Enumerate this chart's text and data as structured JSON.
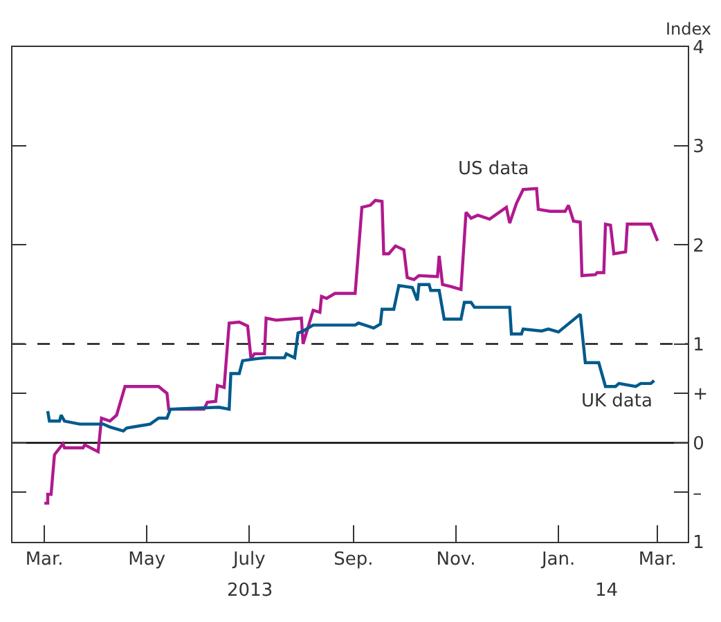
{
  "chart_data": {
    "type": "line",
    "ylabel": "Index",
    "xlim": [
      "2013-02-10",
      "2014-03-19"
    ],
    "xticks": [
      {
        "value": "2013-03-01",
        "label": "Mar."
      },
      {
        "value": "2013-05-01",
        "label": "May"
      },
      {
        "value": "2013-07-01",
        "label": "July"
      },
      {
        "value": "2013-09-01",
        "label": "Sep."
      },
      {
        "value": "2013-11-01",
        "label": "Nov."
      },
      {
        "value": "2014-01-01",
        "label": "Jan."
      },
      {
        "value": "2014-03-01",
        "label": "Mar."
      }
    ],
    "ylim": [
      -1,
      4
    ],
    "yticks": [
      4,
      3,
      2,
      1,
      {
        "value": 0.5,
        "label": "+"
      },
      0,
      {
        "value": -0.5,
        "label": "–"
      },
      {
        "value": -1,
        "label": "1"
      }
    ],
    "grid": false,
    "legend": false,
    "line_style": "solid",
    "marker": "none",
    "ref_lines": [
      {
        "axis": "y",
        "value": 1,
        "color": "#000000",
        "line_style": "dashed"
      },
      {
        "axis": "y",
        "value": 0,
        "color": "#000000",
        "line_style": "solid"
      }
    ],
    "annotations": [
      "2013",
      "14"
    ],
    "series": [
      {
        "name": "US data",
        "color": "#b0198e",
        "x": [
          "2013-03-01",
          "2013-03-03",
          "2013-03-03",
          "2013-03-05",
          "2013-03-07",
          "2013-03-12",
          "2013-03-13",
          "2013-03-24",
          "2013-03-25",
          "2013-04-02",
          "2013-04-04",
          "2013-04-09",
          "2013-04-13",
          "2013-04-18",
          "2013-05-08",
          "2013-05-13",
          "2013-05-14",
          "2013-06-04",
          "2013-06-06",
          "2013-06-11",
          "2013-06-12",
          "2013-06-16",
          "2013-06-19",
          "2013-06-25",
          "2013-06-30",
          "2013-07-02",
          "2013-07-04",
          "2013-07-10",
          "2013-07-11",
          "2013-07-17",
          "2013-08-01",
          "2013-08-02",
          "2013-08-08",
          "2013-08-12",
          "2013-08-13",
          "2013-08-16",
          "2013-08-21",
          "2013-09-02",
          "2013-09-06",
          "2013-09-11",
          "2013-09-14",
          "2013-09-18",
          "2013-09-19",
          "2013-09-22",
          "2013-09-26",
          "2013-10-01",
          "2013-10-03",
          "2013-10-07",
          "2013-10-10",
          "2013-10-21",
          "2013-10-22",
          "2013-10-24",
          "2013-10-29",
          "2013-11-04",
          "2013-11-07",
          "2013-11-10",
          "2013-11-14",
          "2013-11-21",
          "2013-12-01",
          "2013-12-03",
          "2013-12-07",
          "2013-12-11",
          "2013-12-19",
          "2013-12-20",
          "2013-12-27",
          "2014-01-05",
          "2014-01-07",
          "2014-01-10",
          "2014-01-14",
          "2014-01-15",
          "2014-01-23",
          "2014-01-24",
          "2014-01-28",
          "2014-01-29",
          "2014-02-01",
          "2014-02-03",
          "2014-02-10",
          "2014-02-11",
          "2014-02-25",
          "2014-03-01"
        ],
        "values": [
          -0.61,
          -0.61,
          -0.52,
          -0.52,
          -0.12,
          -0.01,
          -0.05,
          -0.05,
          -0.02,
          -0.09,
          0.25,
          0.22,
          0.28,
          0.57,
          0.57,
          0.5,
          0.34,
          0.34,
          0.41,
          0.42,
          0.58,
          0.56,
          1.21,
          1.22,
          1.18,
          0.85,
          0.9,
          0.9,
          1.26,
          1.24,
          1.26,
          1.0,
          1.34,
          1.32,
          1.48,
          1.46,
          1.51,
          1.51,
          2.38,
          2.4,
          2.45,
          2.44,
          1.91,
          1.91,
          1.99,
          1.95,
          1.67,
          1.65,
          1.69,
          1.68,
          1.89,
          1.6,
          1.58,
          1.55,
          2.33,
          2.27,
          2.3,
          2.26,
          2.38,
          2.22,
          2.42,
          2.56,
          2.57,
          2.36,
          2.34,
          2.34,
          2.4,
          2.24,
          2.23,
          1.69,
          1.7,
          1.72,
          1.72,
          2.21,
          2.2,
          1.91,
          1.93,
          2.21,
          2.21,
          2.04
        ]
      },
      {
        "name": "UK data",
        "color": "#005a8c",
        "x": [
          "2013-03-03",
          "2013-03-04",
          "2013-03-10",
          "2013-03-11",
          "2013-03-13",
          "2013-03-22",
          "2013-04-05",
          "2013-04-09",
          "2013-04-17",
          "2013-04-19",
          "2013-04-26",
          "2013-05-03",
          "2013-05-08",
          "2013-05-13",
          "2013-05-15",
          "2013-06-13",
          "2013-06-19",
          "2013-06-20",
          "2013-06-25",
          "2013-06-27",
          "2013-07-05",
          "2013-07-11",
          "2013-07-22",
          "2013-07-23",
          "2013-07-28",
          "2013-07-30",
          "2013-08-02",
          "2013-08-08",
          "2013-09-02",
          "2013-09-04",
          "2013-09-13",
          "2013-09-17",
          "2013-09-18",
          "2013-09-25",
          "2013-09-28",
          "2013-10-06",
          "2013-10-09",
          "2013-10-10",
          "2013-10-16",
          "2013-10-17",
          "2013-10-22",
          "2013-10-25",
          "2013-11-04",
          "2013-11-06",
          "2013-11-10",
          "2013-11-12",
          "2013-12-03",
          "2013-12-04",
          "2013-12-10",
          "2013-12-11",
          "2013-12-22",
          "2013-12-26",
          "2014-01-01",
          "2014-01-14",
          "2014-01-17",
          "2014-01-25",
          "2014-01-29",
          "2014-02-04",
          "2014-02-06",
          "2014-02-16",
          "2014-02-19",
          "2014-02-25",
          "2014-02-27"
        ],
        "values": [
          0.32,
          0.22,
          0.22,
          0.28,
          0.22,
          0.19,
          0.19,
          0.16,
          0.12,
          0.15,
          0.17,
          0.19,
          0.25,
          0.25,
          0.34,
          0.36,
          0.34,
          0.7,
          0.7,
          0.83,
          0.85,
          0.86,
          0.86,
          0.9,
          0.86,
          1.11,
          1.13,
          1.19,
          1.19,
          1.21,
          1.16,
          1.2,
          1.35,
          1.35,
          1.59,
          1.57,
          1.44,
          1.6,
          1.6,
          1.54,
          1.54,
          1.25,
          1.25,
          1.42,
          1.42,
          1.37,
          1.37,
          1.1,
          1.1,
          1.15,
          1.13,
          1.15,
          1.12,
          1.3,
          0.81,
          0.81,
          0.57,
          0.57,
          0.6,
          0.57,
          0.6,
          0.6,
          0.63
        ]
      }
    ]
  }
}
